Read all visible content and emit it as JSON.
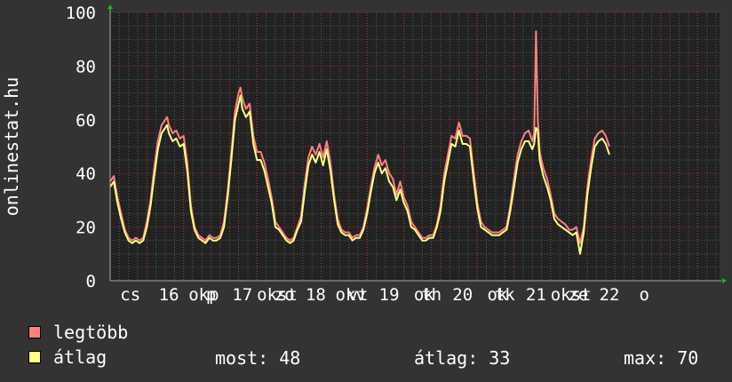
{
  "colors": {
    "background": "#333333",
    "plot_background": "#222222",
    "grid_major": "#c03030",
    "grid_minor": "#5a5a5a",
    "axis_arrow": "#00cc00",
    "max_series": "#ff8080",
    "avg_series": "#ffff80",
    "text": "#ffffff"
  },
  "legend": {
    "max_label": "legtöbb",
    "avg_label": "átlag"
  },
  "stats": {
    "current": "most: 48",
    "average": "átlag: 33",
    "maximum": "max: 70"
  },
  "chart_data": {
    "type": "line",
    "title": "",
    "xlabel": "",
    "ylabel": "onlinestat.hu",
    "ylim": [
      0,
      100
    ],
    "xlim": [
      0,
      16.6
    ],
    "y_ticks": [
      0,
      20,
      40,
      60,
      80,
      100
    ],
    "x_tick_labels": [
      {
        "x": 0.55,
        "label": "cs"
      },
      {
        "x": 1.6,
        "label": "16"
      },
      {
        "x": 2.55,
        "label": "okp"
      },
      {
        "x": 2.75,
        "label": "p"
      },
      {
        "x": 3.6,
        "label": "17"
      },
      {
        "x": 4.55,
        "label": "okst"
      },
      {
        "x": 4.75,
        "label": "zo"
      },
      {
        "x": 5.6,
        "label": "18"
      },
      {
        "x": 6.55,
        "label": "okv"
      },
      {
        "x": 6.75,
        "label": "vt"
      },
      {
        "x": 7.6,
        "label": "19"
      },
      {
        "x": 8.55,
        "label": "ok"
      },
      {
        "x": 8.75,
        "label": "th"
      },
      {
        "x": 9.6,
        "label": "20"
      },
      {
        "x": 10.55,
        "label": "ok"
      },
      {
        "x": 10.75,
        "label": "tk"
      },
      {
        "x": 11.6,
        "label": "21"
      },
      {
        "x": 12.55,
        "label": "okst"
      },
      {
        "x": 12.75,
        "label": "ze"
      },
      {
        "x": 13.6,
        "label": "22"
      },
      {
        "x": 14.55,
        "label": "o"
      }
    ],
    "grid": true,
    "legend_position": "bottom-left",
    "series": [
      {
        "name": "legtöbb",
        "color": "#ff8080",
        "x": [
          0.0,
          0.1,
          0.2,
          0.3,
          0.4,
          0.5,
          0.6,
          0.7,
          0.8,
          0.9,
          1.0,
          1.1,
          1.2,
          1.3,
          1.4,
          1.5,
          1.55,
          1.6,
          1.7,
          1.8,
          1.9,
          2.0,
          2.1,
          2.2,
          2.3,
          2.4,
          2.5,
          2.6,
          2.7,
          2.8,
          2.9,
          3.0,
          3.1,
          3.2,
          3.3,
          3.4,
          3.5,
          3.55,
          3.6,
          3.7,
          3.8,
          3.9,
          4.0,
          4.1,
          4.2,
          4.3,
          4.4,
          4.5,
          4.6,
          4.7,
          4.8,
          4.9,
          5.0,
          5.1,
          5.2,
          5.3,
          5.4,
          5.5,
          5.6,
          5.7,
          5.8,
          5.9,
          6.0,
          6.1,
          6.2,
          6.3,
          6.4,
          6.5,
          6.6,
          6.7,
          6.8,
          6.9,
          7.0,
          7.1,
          7.2,
          7.3,
          7.4,
          7.5,
          7.6,
          7.7,
          7.8,
          7.9,
          8.0,
          8.1,
          8.2,
          8.3,
          8.4,
          8.5,
          8.6,
          8.7,
          8.8,
          8.9,
          9.0,
          9.1,
          9.2,
          9.3,
          9.4,
          9.5,
          9.6,
          9.7,
          9.8,
          9.9,
          10.0,
          10.1,
          10.2,
          10.3,
          10.4,
          10.5,
          10.6,
          10.7,
          10.8,
          10.9,
          11.0,
          11.1,
          11.2,
          11.3,
          11.4,
          11.5,
          11.55,
          11.6,
          11.65,
          11.7,
          11.8,
          11.9,
          12.0,
          12.1,
          12.2,
          12.3,
          12.4,
          12.5,
          12.6,
          12.7,
          12.8,
          12.9,
          13.0,
          13.1,
          13.2,
          13.3,
          13.4,
          13.5,
          13.6
        ],
        "values": [
          37,
          39,
          31,
          25,
          19,
          16,
          15,
          16,
          15,
          16,
          22,
          30,
          42,
          52,
          58,
          60,
          61,
          58,
          55,
          56,
          53,
          54,
          44,
          28,
          20,
          17,
          16,
          15,
          17,
          16,
          16,
          17,
          22,
          33,
          48,
          63,
          70,
          72,
          68,
          64,
          66,
          54,
          48,
          48,
          44,
          38,
          31,
          22,
          20,
          18,
          16,
          15,
          16,
          20,
          24,
          36,
          46,
          50,
          47,
          51,
          46,
          52,
          44,
          32,
          23,
          19,
          18,
          18,
          16,
          17,
          17,
          20,
          27,
          35,
          42,
          47,
          43,
          45,
          40,
          38,
          32,
          37,
          31,
          28,
          22,
          20,
          18,
          16,
          16,
          17,
          17,
          21,
          28,
          40,
          47,
          54,
          53,
          59,
          54,
          54,
          53,
          41,
          29,
          22,
          20,
          19,
          18,
          18,
          18,
          19,
          20,
          28,
          38,
          47,
          52,
          55,
          56,
          52,
          55,
          93,
          60,
          48,
          42,
          38,
          32,
          25,
          23,
          22,
          21,
          19,
          19,
          20,
          14,
          20,
          35,
          45,
          53,
          55,
          56,
          54,
          50
        ]
      },
      {
        "name": "átlag",
        "color": "#ffff80",
        "x": [
          0.0,
          0.1,
          0.2,
          0.3,
          0.4,
          0.5,
          0.6,
          0.7,
          0.8,
          0.9,
          1.0,
          1.1,
          1.2,
          1.3,
          1.4,
          1.5,
          1.55,
          1.6,
          1.7,
          1.8,
          1.9,
          2.0,
          2.1,
          2.2,
          2.3,
          2.4,
          2.5,
          2.6,
          2.7,
          2.8,
          2.9,
          3.0,
          3.1,
          3.2,
          3.3,
          3.4,
          3.5,
          3.55,
          3.6,
          3.7,
          3.8,
          3.9,
          4.0,
          4.1,
          4.2,
          4.3,
          4.4,
          4.5,
          4.6,
          4.7,
          4.8,
          4.9,
          5.0,
          5.1,
          5.2,
          5.3,
          5.4,
          5.5,
          5.6,
          5.7,
          5.8,
          5.9,
          6.0,
          6.1,
          6.2,
          6.3,
          6.4,
          6.5,
          6.6,
          6.7,
          6.8,
          6.9,
          7.0,
          7.1,
          7.2,
          7.3,
          7.4,
          7.5,
          7.6,
          7.7,
          7.8,
          7.9,
          8.0,
          8.1,
          8.2,
          8.3,
          8.4,
          8.5,
          8.6,
          8.7,
          8.8,
          8.9,
          9.0,
          9.1,
          9.2,
          9.3,
          9.4,
          9.5,
          9.6,
          9.7,
          9.8,
          9.9,
          10.0,
          10.1,
          10.2,
          10.3,
          10.4,
          10.5,
          10.6,
          10.7,
          10.8,
          10.9,
          11.0,
          11.1,
          11.2,
          11.3,
          11.4,
          11.5,
          11.55,
          11.6,
          11.65,
          11.7,
          11.8,
          11.9,
          12.0,
          12.1,
          12.2,
          12.3,
          12.4,
          12.5,
          12.6,
          12.7,
          12.8,
          12.9,
          13.0,
          13.1,
          13.2,
          13.3,
          13.4,
          13.5,
          13.6
        ],
        "values": [
          35,
          37,
          29,
          23,
          18,
          15,
          14,
          15,
          14,
          15,
          20,
          28,
          39,
          49,
          55,
          57,
          58,
          55,
          52,
          53,
          50,
          51,
          41,
          26,
          19,
          16,
          15,
          14,
          16,
          15,
          15,
          16,
          20,
          31,
          45,
          60,
          66,
          69,
          64,
          61,
          63,
          51,
          45,
          45,
          41,
          35,
          29,
          20,
          19,
          17,
          15,
          14,
          15,
          19,
          22,
          33,
          43,
          47,
          44,
          48,
          43,
          49,
          41,
          30,
          21,
          18,
          17,
          17,
          15,
          16,
          16,
          19,
          25,
          33,
          40,
          44,
          40,
          42,
          37,
          35,
          30,
          34,
          29,
          26,
          20,
          19,
          17,
          15,
          15,
          16,
          16,
          20,
          26,
          37,
          44,
          51,
          50,
          56,
          51,
          51,
          50,
          38,
          27,
          20,
          19,
          18,
          17,
          17,
          17,
          18,
          19,
          26,
          35,
          44,
          49,
          52,
          52,
          49,
          51,
          57,
          56,
          45,
          39,
          35,
          30,
          23,
          21,
          20,
          19,
          18,
          17,
          18,
          10,
          18,
          32,
          42,
          50,
          52,
          53,
          51,
          47
        ]
      }
    ]
  }
}
